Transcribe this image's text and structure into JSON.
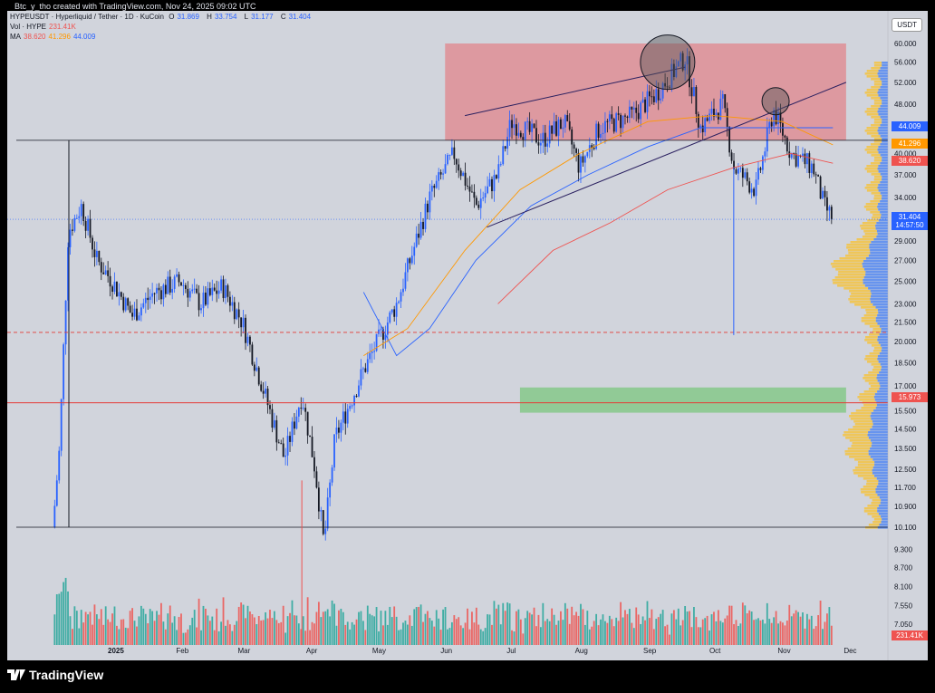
{
  "header": {
    "created_by": "Btc_y_tho created with TradingView.com, Nov 24, 2025 09:02 UTC"
  },
  "legend": {
    "symbol": "HYPEUSDT · Hyperliquid / Tether · 1D · KuCoin",
    "o_label": "O",
    "o_value": "31.869",
    "h_label": "H",
    "h_value": "33.754",
    "l_label": "L",
    "l_value": "31.177",
    "c_label": "C",
    "c_value": "31.404",
    "vol_label": "Vol · HYPE",
    "vol_value": "231.41K",
    "ma_label": "MA",
    "ma1": "38.620",
    "ma2": "41.296",
    "ma3": "44.009"
  },
  "currency_button": "USDT",
  "price_tags": {
    "ma3": "44.009",
    "ma2": "41.296",
    "ma1": "38.620",
    "last": "31.404",
    "countdown": "14:57:50",
    "support": "15.973",
    "volume": "231.41K"
  },
  "colors": {
    "up": "#26a69a",
    "down": "#ef5350",
    "candle_up": "#2962ff",
    "candle_down": "#131722",
    "ma_red": "#ef5350",
    "ma_orange": "#ff9800",
    "ma_blue": "#2962ff",
    "resistance_zone": "#e0868c",
    "support_zone": "#81c784",
    "vp_yellow": "#f5c342",
    "vp_blue": "#5b8def"
  },
  "footer": {
    "brand": "TradingView"
  },
  "chart_data": {
    "type": "candlestick",
    "scale": "log",
    "y_ticks": [
      "60.000",
      "56.000",
      "52.000",
      "48.000",
      "44.000",
      "40.000",
      "37.000",
      "34.000",
      "31.000",
      "29.000",
      "27.000",
      "25.000",
      "23.000",
      "21.500",
      "20.000",
      "18.500",
      "17.000",
      "15.500",
      "14.500",
      "13.500",
      "12.500",
      "11.700",
      "10.900",
      "10.100",
      "9.300",
      "8.700",
      "8.100",
      "7.550",
      "7.050"
    ],
    "x_ticks": [
      "2025",
      "Feb",
      "Mar",
      "Apr",
      "May",
      "Jun",
      "Jul",
      "Aug",
      "Sep",
      "Oct",
      "Nov",
      "Dec"
    ],
    "price_path": [
      {
        "date": "2024-12-05",
        "price": 10.1
      },
      {
        "date": "2024-12-08",
        "price": 13.5
      },
      {
        "date": "2024-12-12",
        "price": 30.0
      },
      {
        "date": "2024-12-18",
        "price": 33.0
      },
      {
        "date": "2024-12-25",
        "price": 27.0
      },
      {
        "date": "2025-01-01",
        "price": 25.0
      },
      {
        "date": "2025-01-10",
        "price": 22.0
      },
      {
        "date": "2025-01-20",
        "price": 24.0
      },
      {
        "date": "2025-02-01",
        "price": 25.0
      },
      {
        "date": "2025-02-10",
        "price": 23.0
      },
      {
        "date": "2025-02-20",
        "price": 24.5
      },
      {
        "date": "2025-03-01",
        "price": 21.5
      },
      {
        "date": "2025-03-10",
        "price": 17.0
      },
      {
        "date": "2025-03-20",
        "price": 13.0
      },
      {
        "date": "2025-03-28",
        "price": 16.5
      },
      {
        "date": "2025-04-03",
        "price": 12.5
      },
      {
        "date": "2025-04-07",
        "price": 9.5
      },
      {
        "date": "2025-04-12",
        "price": 14.0
      },
      {
        "date": "2025-04-25",
        "price": 18.0
      },
      {
        "date": "2025-05-10",
        "price": 23.0
      },
      {
        "date": "2025-05-25",
        "price": 34.0
      },
      {
        "date": "2025-06-05",
        "price": 40.0
      },
      {
        "date": "2025-06-15",
        "price": 33.0
      },
      {
        "date": "2025-06-25",
        "price": 37.0
      },
      {
        "date": "2025-07-01",
        "price": 45.0
      },
      {
        "date": "2025-07-15",
        "price": 42.0
      },
      {
        "date": "2025-07-25",
        "price": 45.0
      },
      {
        "date": "2025-08-01",
        "price": 38.0
      },
      {
        "date": "2025-08-10",
        "price": 44.0
      },
      {
        "date": "2025-08-25",
        "price": 46.0
      },
      {
        "date": "2025-09-05",
        "price": 50.0
      },
      {
        "date": "2025-09-18",
        "price": 57.0
      },
      {
        "date": "2025-09-25",
        "price": 44.0
      },
      {
        "date": "2025-10-05",
        "price": 48.0
      },
      {
        "date": "2025-10-10",
        "price": 38.0
      },
      {
        "date": "2025-10-20",
        "price": 35.0
      },
      {
        "date": "2025-10-28",
        "price": 47.0
      },
      {
        "date": "2025-11-05",
        "price": 40.0
      },
      {
        "date": "2025-11-15",
        "price": 38.0
      },
      {
        "date": "2025-11-20",
        "price": 33.0
      },
      {
        "date": "2025-11-24",
        "price": 31.4
      }
    ],
    "annotations": {
      "resistance_zone": {
        "from": "2025-06-01",
        "to": "2025-11-30",
        "low": 42.0,
        "high": 60.0
      },
      "support_zone": {
        "from": "2025-07-05",
        "to": "2025-11-30",
        "low": 15.4,
        "high": 16.9
      },
      "horizontal_lines": [
        42.0,
        10.1
      ],
      "red_line": 15.973,
      "red_dashed_line": 20.7
    }
  }
}
